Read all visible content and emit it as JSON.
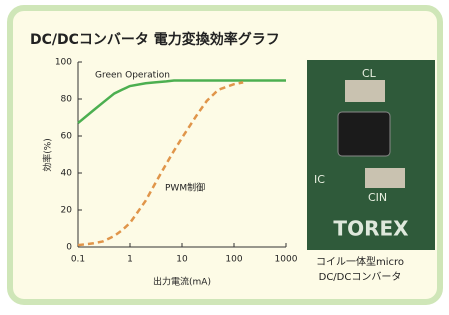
{
  "chart_data": {
    "type": "line",
    "title": "DC/DCコンバータ 電力変換効率グラフ",
    "x_label": "出力電流(mA)",
    "y_label": "効率(%)",
    "x": [
      0.1,
      0.2,
      0.3,
      0.5,
      0.7,
      1,
      2,
      3,
      5,
      7,
      10,
      20,
      30,
      50,
      100,
      150,
      1000
    ],
    "series": [
      {
        "name": "Green Operation",
        "color": "#4caf50",
        "dash": false,
        "values": [
          67,
          74,
          78,
          83,
          85,
          87,
          88.5,
          89,
          89.5,
          90,
          90,
          90,
          90,
          90,
          90,
          90,
          90
        ]
      },
      {
        "name": "PWM制御",
        "color": "#e0954a",
        "dash": true,
        "values": [
          1,
          2,
          3,
          6,
          9,
          13,
          25,
          34,
          45,
          52,
          59,
          72,
          79,
          85,
          88,
          89,
          null
        ]
      }
    ],
    "xscale": "log",
    "xlim": [
      0.1,
      1000
    ],
    "xticks": [
      0.1,
      1,
      10,
      100,
      1000
    ],
    "ylim": [
      0,
      100
    ],
    "yticks": [
      0,
      20,
      40,
      60,
      80,
      100
    ],
    "grid": false
  },
  "photo": {
    "labels": [
      "CL",
      "IC",
      "CIN",
      "TOREX"
    ],
    "caption": [
      "コイル一体型micro",
      "DC/DCコンバータ"
    ]
  }
}
